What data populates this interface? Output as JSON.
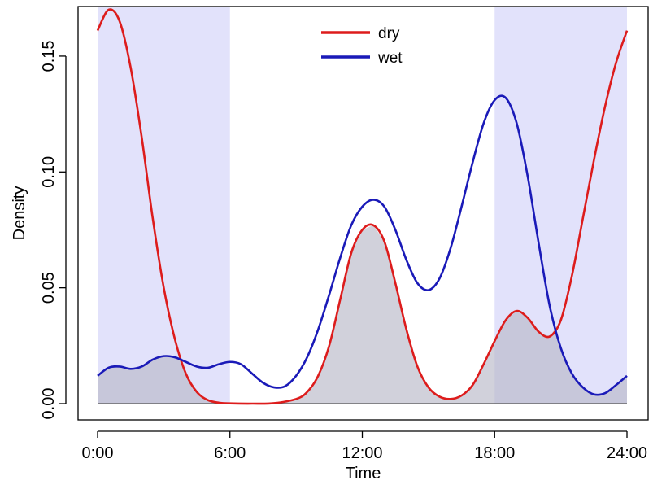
{
  "chart_data": {
    "type": "line",
    "xlabel": "Time",
    "ylabel": "Density",
    "xlim": [
      0,
      24
    ],
    "ylim": [
      0,
      0.17
    ],
    "x_ticks": [
      {
        "value": 0,
        "label": "0:00"
      },
      {
        "value": 6,
        "label": "6:00"
      },
      {
        "value": 12,
        "label": "12:00"
      },
      {
        "value": 18,
        "label": "18:00"
      },
      {
        "value": 24,
        "label": "24:00"
      }
    ],
    "y_ticks": [
      {
        "value": 0,
        "label": "0.00"
      },
      {
        "value": 0.05,
        "label": "0.05"
      },
      {
        "value": 0.1,
        "label": "0.10"
      },
      {
        "value": 0.15,
        "label": "0.15"
      }
    ],
    "shaded_regions": [
      {
        "x_start": 0,
        "x_end": 6,
        "color": "#e2e2fb"
      },
      {
        "x_start": 18,
        "x_end": 24,
        "color": "#e2e2fb"
      }
    ],
    "overlap_fill_color": "#b8b8c8",
    "legend_position": "top-center",
    "grid": false,
    "series": [
      {
        "name": "dry",
        "color": "#dd1c1c",
        "x": [
          0,
          0.5,
          1,
          1.5,
          2,
          2.5,
          3,
          3.5,
          4,
          4.5,
          5,
          5.5,
          6,
          7,
          8,
          9,
          9.5,
          10,
          10.5,
          11,
          11.5,
          12,
          12.5,
          13,
          13.5,
          14,
          14.5,
          15,
          15.5,
          16,
          16.5,
          17,
          17.5,
          18,
          18.5,
          19,
          19.5,
          20,
          20.5,
          21,
          21.5,
          22,
          22.5,
          23,
          23.5,
          24
        ],
        "y": [
          0.161,
          0.17,
          0.165,
          0.145,
          0.115,
          0.08,
          0.05,
          0.028,
          0.013,
          0.005,
          0.0015,
          0.0004,
          0.0001,
          0,
          0.0002,
          0.002,
          0.005,
          0.012,
          0.025,
          0.045,
          0.065,
          0.075,
          0.077,
          0.07,
          0.052,
          0.032,
          0.016,
          0.007,
          0.003,
          0.002,
          0.0035,
          0.008,
          0.017,
          0.027,
          0.036,
          0.04,
          0.037,
          0.031,
          0.029,
          0.036,
          0.055,
          0.08,
          0.105,
          0.128,
          0.147,
          0.161
        ]
      },
      {
        "name": "wet",
        "color": "#1a1ab8",
        "x": [
          0,
          0.5,
          1,
          1.5,
          2,
          2.5,
          3,
          3.5,
          4,
          4.5,
          5,
          5.5,
          6,
          6.5,
          7,
          7.5,
          8,
          8.5,
          9,
          9.5,
          10,
          10.5,
          11,
          11.5,
          12,
          12.5,
          13,
          13.5,
          14,
          14.5,
          15,
          15.5,
          16,
          16.5,
          17,
          17.5,
          18,
          18.5,
          19,
          19.5,
          20,
          20.5,
          21,
          21.5,
          22,
          22.5,
          23,
          23.5,
          24
        ],
        "y": [
          0.012,
          0.0155,
          0.016,
          0.015,
          0.016,
          0.019,
          0.0205,
          0.02,
          0.018,
          0.016,
          0.0155,
          0.017,
          0.018,
          0.017,
          0.013,
          0.009,
          0.007,
          0.0075,
          0.012,
          0.02,
          0.032,
          0.047,
          0.063,
          0.077,
          0.085,
          0.088,
          0.085,
          0.075,
          0.062,
          0.052,
          0.049,
          0.054,
          0.067,
          0.085,
          0.104,
          0.121,
          0.131,
          0.132,
          0.121,
          0.098,
          0.069,
          0.042,
          0.024,
          0.013,
          0.007,
          0.004,
          0.0045,
          0.008,
          0.012
        ]
      }
    ]
  }
}
